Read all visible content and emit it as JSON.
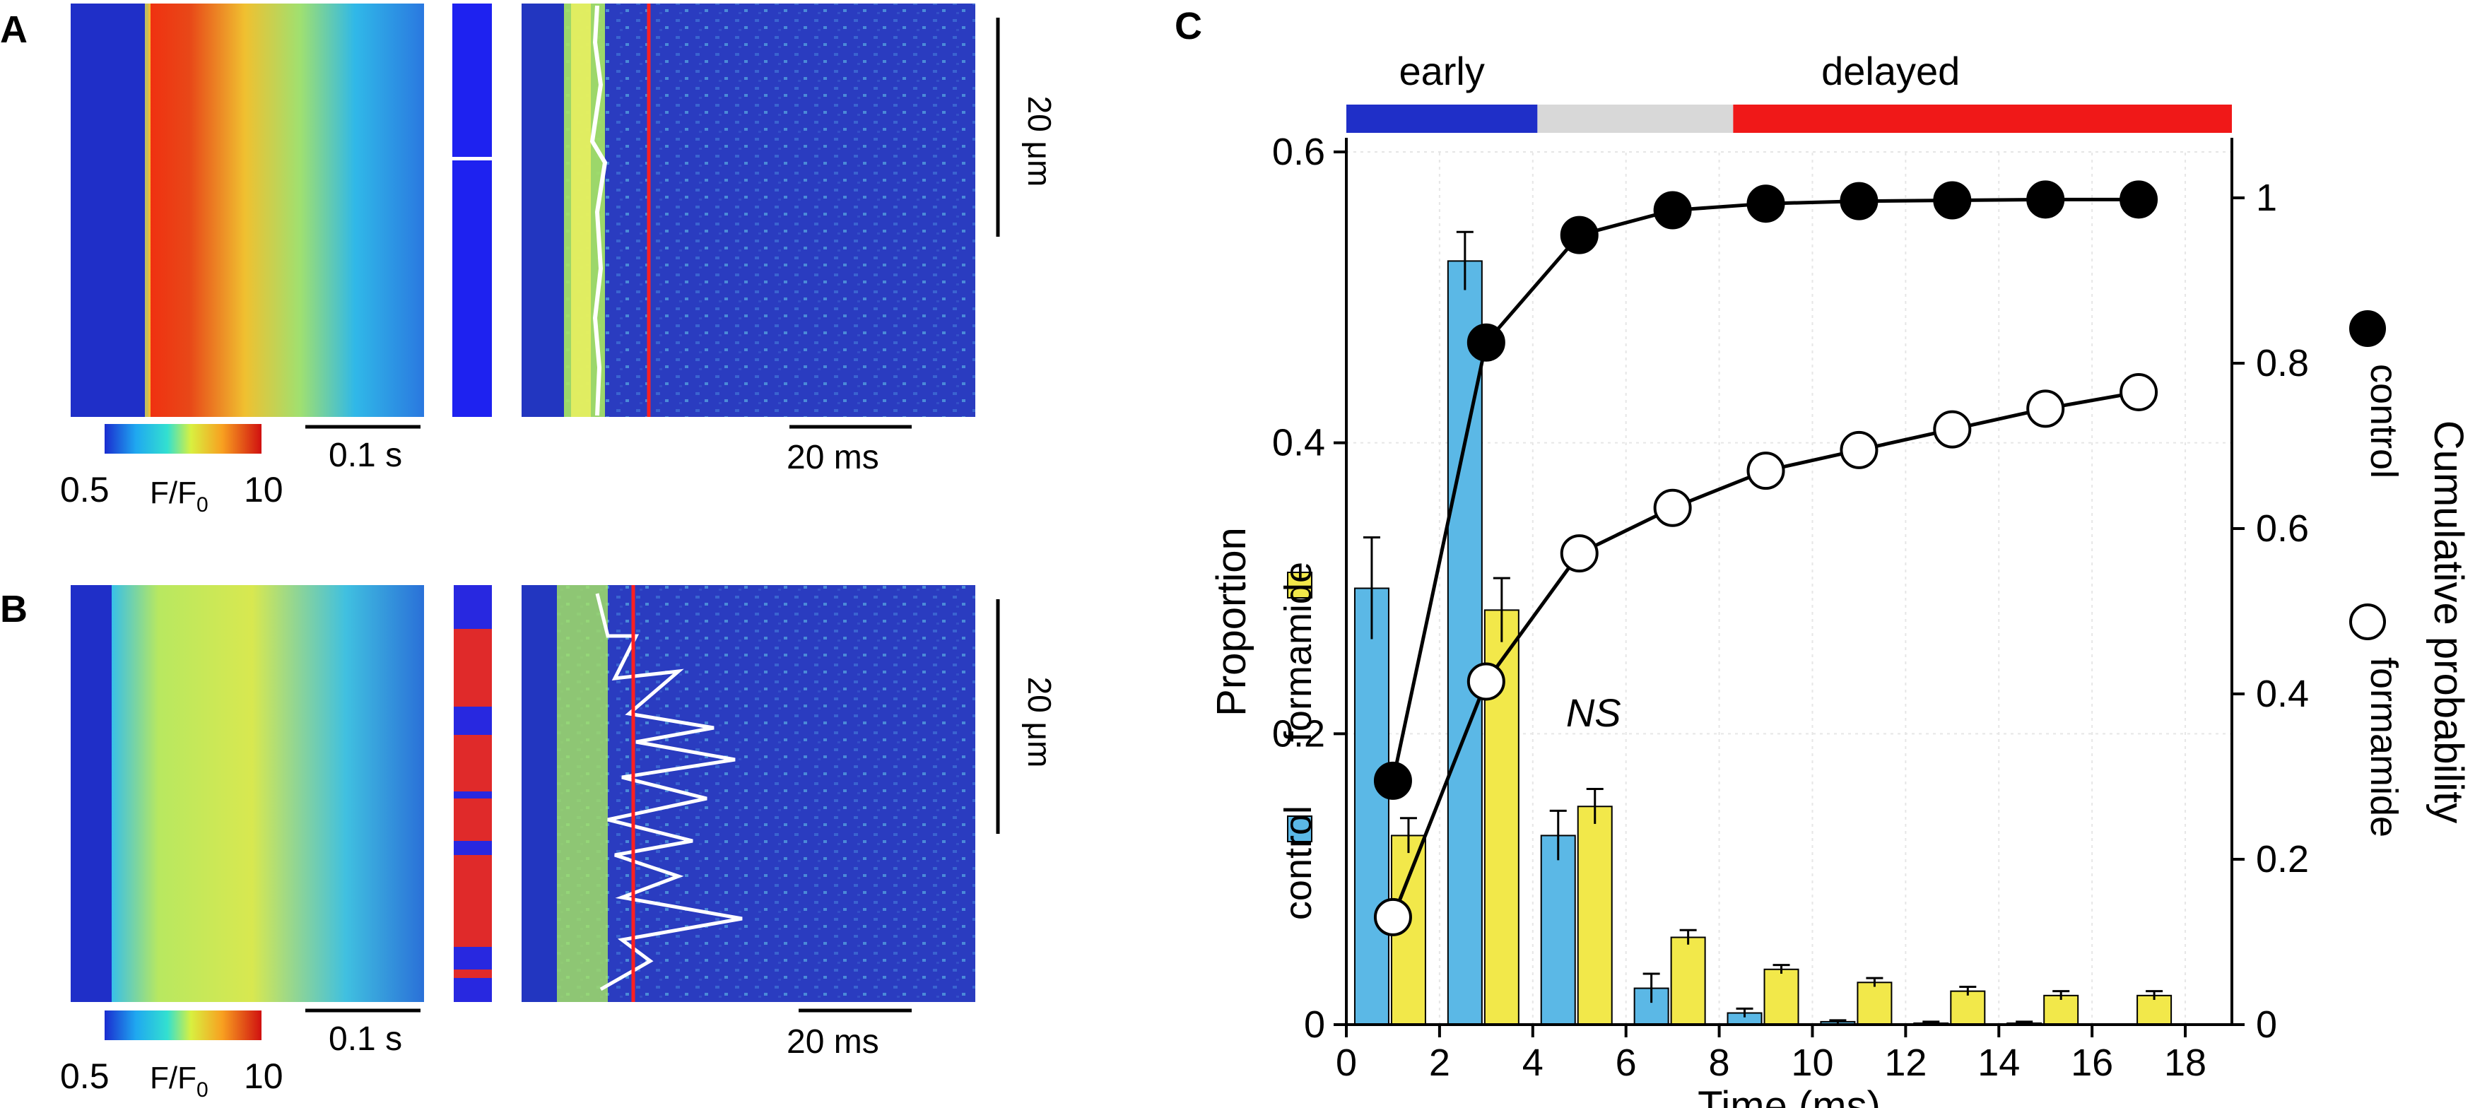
{
  "panels": {
    "A": {
      "label": "A",
      "colorbar_min": "0.5",
      "colorbar_max": "10",
      "colorbar_label": "F/F",
      "colorbar_label_sub": "0",
      "time_scale": "0.1 s",
      "zoom_time_scale": "20 ms",
      "space_scale": "20 μm"
    },
    "B": {
      "label": "B",
      "colorbar_min": "0.5",
      "colorbar_max": "10",
      "colorbar_label": "F/F",
      "colorbar_label_sub": "0",
      "time_scale": "0.1 s",
      "zoom_time_scale": "20 ms",
      "space_scale": "20 μm"
    },
    "C": {
      "label": "C"
    }
  },
  "colors": {
    "control_bar": "#5BB8E6",
    "formamide_bar": "#F2E84A",
    "early": "#1F2FC8",
    "middle": "#D8D8D8",
    "delayed": "#F01818",
    "heat_blue": "#1f2fd0",
    "trace_red": "#ff2020"
  },
  "chart_data": {
    "type": "bar",
    "title": "",
    "xlabel": "Time (ms)",
    "ylabel": "Proportion",
    "y2label": "Cumulative probability",
    "xlim": [
      0,
      19
    ],
    "ylim": [
      0,
      0.6
    ],
    "y2lim": [
      0,
      1.05
    ],
    "xticks": [
      0,
      2,
      4,
      6,
      8,
      10,
      12,
      14,
      16,
      18
    ],
    "yticks": [
      "0",
      "0.2",
      "0.4",
      "0.6"
    ],
    "y2ticks": [
      "0",
      "0.2",
      "0.4",
      "0.6",
      "0.8",
      "1"
    ],
    "annotation": "NS",
    "phases": [
      {
        "name": "early",
        "start": 0,
        "end": 4.1
      },
      {
        "name": "",
        "start": 4.1,
        "end": 8.3
      },
      {
        "name": "delayed",
        "start": 8.3,
        "end": 19
      }
    ],
    "bar_series": [
      {
        "name": "control",
        "x": [
          1,
          3,
          5,
          7,
          9,
          11,
          13,
          15,
          17
        ],
        "values": [
          0.3,
          0.525,
          0.13,
          0.025,
          0.008,
          0.002,
          0.001,
          0.001,
          0.0
        ],
        "errors": [
          0.035,
          0.02,
          0.017,
          0.01,
          0.003,
          0.001,
          0.001,
          0.001,
          0.0
        ]
      },
      {
        "name": "formamide",
        "x": [
          1,
          3,
          5,
          7,
          9,
          11,
          13,
          15,
          17
        ],
        "values": [
          0.13,
          0.285,
          0.15,
          0.06,
          0.038,
          0.029,
          0.023,
          0.02,
          0.02
        ],
        "errors": [
          0.012,
          0.022,
          0.012,
          0.005,
          0.003,
          0.003,
          0.003,
          0.003,
          0.003
        ]
      }
    ],
    "cumulative_series": [
      {
        "name": "control",
        "marker": "filled",
        "x": [
          1,
          3,
          5,
          7,
          9,
          11,
          13,
          15,
          17
        ],
        "values": [
          0.295,
          0.825,
          0.955,
          0.985,
          0.993,
          0.996,
          0.997,
          0.998,
          0.998
        ]
      },
      {
        "name": "formamide",
        "marker": "open",
        "x": [
          1,
          3,
          5,
          7,
          9,
          11,
          13,
          15,
          17
        ],
        "values": [
          0.13,
          0.415,
          0.57,
          0.625,
          0.67,
          0.695,
          0.72,
          0.745,
          0.765
        ]
      }
    ]
  }
}
